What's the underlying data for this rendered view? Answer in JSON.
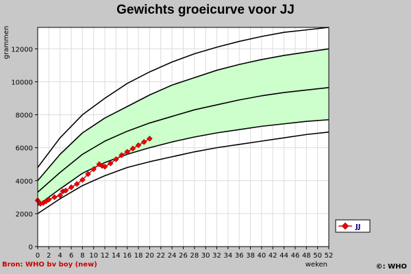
{
  "chart_data": {
    "type": "line",
    "title": "Gewichts groeicurve voor JJ",
    "xlabel": "weken",
    "ylabel": "grammen",
    "xlim": [
      0,
      52
    ],
    "ylim": [
      0,
      13300
    ],
    "grid": true,
    "legend_position": "right",
    "x_ticks": [
      0,
      2,
      4,
      6,
      8,
      10,
      12,
      14,
      16,
      18,
      20,
      22,
      24,
      26,
      28,
      30,
      32,
      34,
      36,
      38,
      40,
      42,
      44,
      46,
      48,
      50,
      52
    ],
    "y_ticks": [
      0,
      2000,
      4000,
      6000,
      8000,
      10000,
      12000
    ],
    "source_label": "Bron: WHO bv boy (new)",
    "copyright_label": "©: WHO",
    "band": {
      "color": "#ccffcc",
      "lower_x": [
        0,
        4,
        8,
        12,
        16,
        20,
        24,
        28,
        32,
        36,
        40,
        44,
        48,
        52
      ],
      "lower_y": [
        2500,
        3500,
        4450,
        5100,
        5600,
        6000,
        6350,
        6650,
        6900,
        7100,
        7300,
        7450,
        7600,
        7700
      ],
      "upper_x": [
        0,
        4,
        8,
        12,
        16,
        20,
        24,
        28,
        32,
        36,
        40,
        44,
        48,
        52
      ],
      "upper_y": [
        4000,
        5600,
        6900,
        7800,
        8500,
        9200,
        9800,
        10250,
        10700,
        11050,
        11350,
        11600,
        11800,
        12000
      ]
    },
    "reference_curves": [
      {
        "x": [
          0,
          4,
          8,
          12,
          16,
          20,
          24,
          28,
          32,
          36,
          40,
          44,
          48,
          52
        ],
        "y": [
          2000,
          2900,
          3700,
          4300,
          4800,
          5150,
          5450,
          5750,
          6000,
          6200,
          6400,
          6600,
          6800,
          6950
        ]
      },
      {
        "x": [
          0,
          4,
          8,
          12,
          16,
          20,
          24,
          28,
          32,
          36,
          40,
          44,
          48,
          52
        ],
        "y": [
          2500,
          3500,
          4450,
          5100,
          5600,
          6000,
          6350,
          6650,
          6900,
          7100,
          7300,
          7450,
          7600,
          7700
        ]
      },
      {
        "x": [
          0,
          4,
          8,
          12,
          16,
          20,
          24,
          28,
          32,
          36,
          40,
          44,
          48,
          52
        ],
        "y": [
          3300,
          4500,
          5600,
          6400,
          7000,
          7500,
          7900,
          8300,
          8600,
          8900,
          9150,
          9350,
          9500,
          9650
        ]
      },
      {
        "x": [
          0,
          4,
          8,
          12,
          16,
          20,
          24,
          28,
          32,
          36,
          40,
          44,
          48,
          52
        ],
        "y": [
          4000,
          5600,
          6900,
          7800,
          8500,
          9200,
          9800,
          10250,
          10700,
          11050,
          11350,
          11600,
          11800,
          12000
        ]
      },
      {
        "x": [
          0,
          4,
          8,
          12,
          16,
          20,
          24,
          28,
          32,
          36,
          40,
          44,
          48,
          52
        ],
        "y": [
          4800,
          6600,
          8000,
          9000,
          9900,
          10600,
          11200,
          11700,
          12100,
          12450,
          12750,
          13000,
          13150,
          13300
        ]
      }
    ],
    "series": [
      {
        "name": "JJ",
        "color": "#ee0000",
        "marker": "diamond",
        "x": [
          0,
          0.5,
          1,
          1.5,
          2,
          3,
          4,
          4.5,
          5,
          6,
          7,
          8,
          9,
          10,
          11,
          11.5,
          12,
          13,
          14,
          15,
          16,
          17,
          18,
          19,
          20
        ],
        "y": [
          2800,
          2600,
          2650,
          2750,
          2850,
          3000,
          3100,
          3350,
          3400,
          3600,
          3800,
          4050,
          4400,
          4700,
          5000,
          4900,
          4850,
          5050,
          5300,
          5550,
          5750,
          5950,
          6150,
          6350,
          6550
        ]
      }
    ]
  }
}
